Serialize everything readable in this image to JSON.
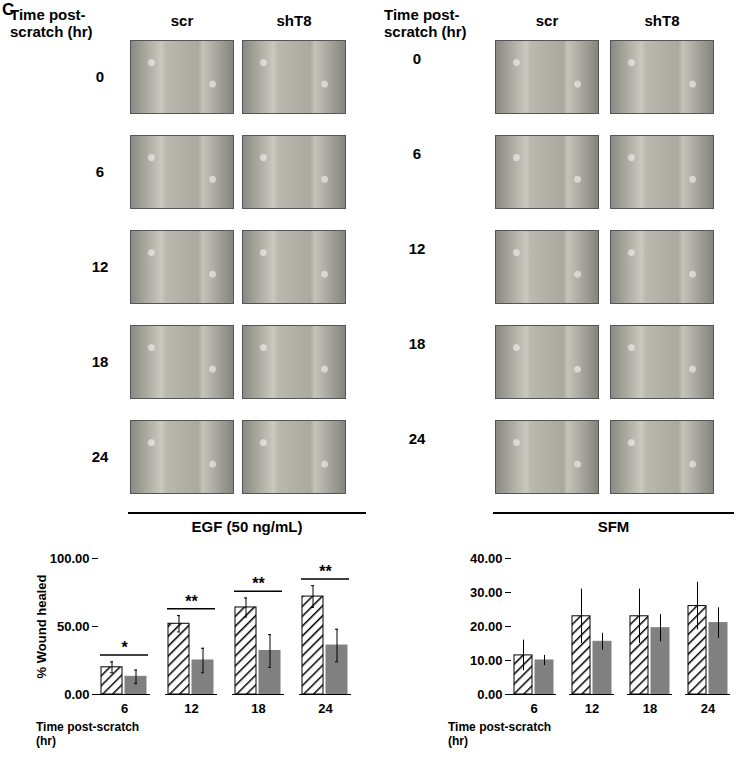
{
  "panel_label": "C",
  "image_panels": [
    {
      "row_header": "Time post-scratch (hr)",
      "columns": [
        "scr",
        "shT8"
      ],
      "rows": [
        "0",
        "6",
        "12",
        "18",
        "24"
      ],
      "condition": "EGF (50 ng/mL)"
    },
    {
      "row_header": "Time post-scratch (hr)",
      "columns": [
        "scr",
        "shT8"
      ],
      "rows": [
        "0",
        "6",
        "12",
        "18",
        "24"
      ],
      "condition": "SFM"
    }
  ],
  "chart_data": [
    {
      "type": "bar",
      "y_label": "% Wound healed",
      "x_label": "Time post-scratch (hr)",
      "categories": [
        "6",
        "12",
        "18",
        "24"
      ],
      "series": [
        {
          "name": "scr",
          "color": "#000000",
          "values": [
            20,
            52,
            64,
            72
          ],
          "errors": [
            4,
            6,
            7,
            8
          ]
        },
        {
          "name": "shT8",
          "color": "#808080",
          "values": [
            13,
            25,
            32,
            36
          ],
          "errors": [
            5,
            9,
            12,
            12
          ]
        }
      ],
      "annotations": [
        "*",
        "**",
        "**",
        "**"
      ],
      "ylim": [
        0,
        100
      ],
      "yticks": [
        {
          "value": 0,
          "label": "0.00"
        },
        {
          "value": 50,
          "label": "50.00"
        },
        {
          "value": 100,
          "label": "100.00"
        }
      ]
    },
    {
      "type": "bar",
      "x_label": "Time post-scratch (hr)",
      "categories": [
        "6",
        "12",
        "18",
        "24"
      ],
      "series": [
        {
          "name": "scr",
          "color": "#000000",
          "values": [
            11.5,
            23,
            23,
            26
          ],
          "errors": [
            4.5,
            8,
            8,
            7
          ]
        },
        {
          "name": "shT8",
          "color": "#808080",
          "values": [
            10,
            15.5,
            19.5,
            21
          ],
          "errors": [
            1.5,
            2.5,
            4,
            4.5
          ]
        }
      ],
      "ylim": [
        0,
        40
      ],
      "yticks": [
        {
          "value": 0,
          "label": "0.00"
        },
        {
          "value": 10,
          "label": "10.00"
        },
        {
          "value": 20,
          "label": "20.00"
        },
        {
          "value": 30,
          "label": "30.00"
        },
        {
          "value": 40,
          "label": "40.00"
        }
      ]
    }
  ]
}
